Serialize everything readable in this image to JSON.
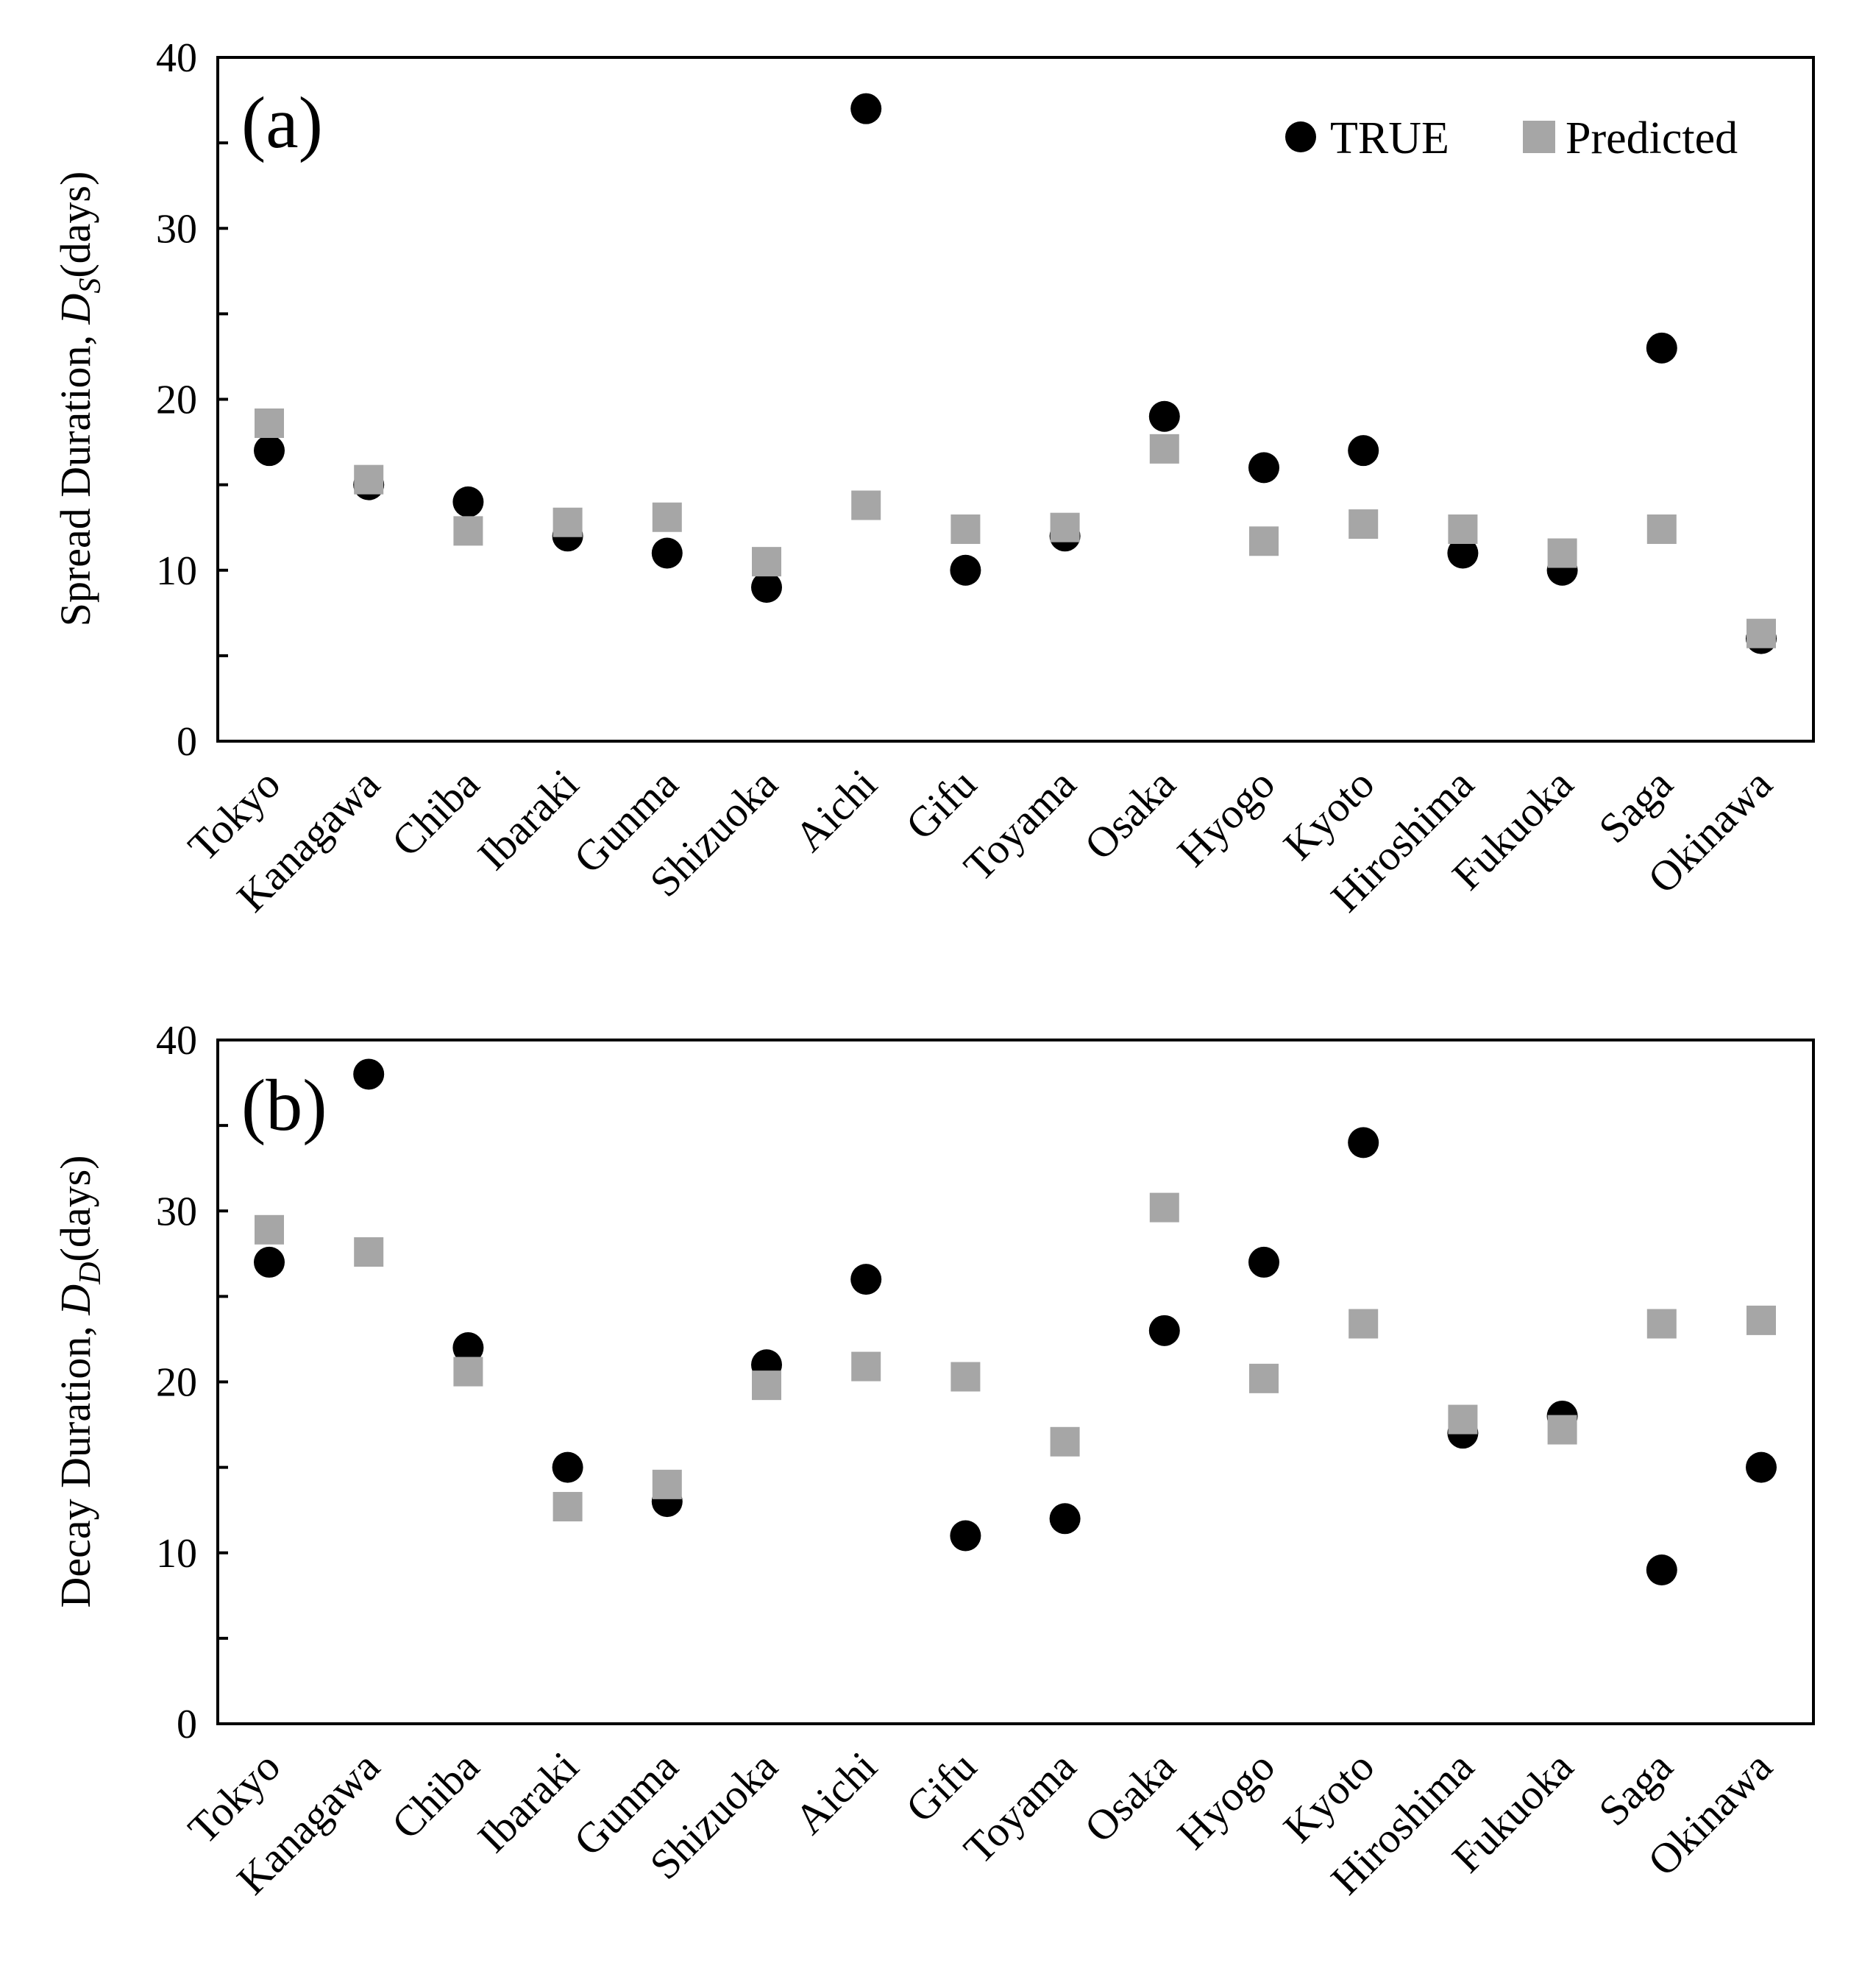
{
  "colors": {
    "true_marker": "#000000",
    "predicted_marker": "#a6a6a6",
    "axes": "#000000"
  },
  "legend": {
    "placement": "top-right",
    "true_label": "TRUE",
    "predicted_label": "Predicted"
  },
  "chart_data": [
    {
      "type": "scatter",
      "panel_label": "(a)",
      "ylabel": {
        "main": "Spread Duration, ",
        "symbol": "D",
        "subscript": "S",
        "unit": "(days)"
      },
      "ylim": [
        0,
        40
      ],
      "yticks": [
        0,
        10,
        20,
        30,
        40
      ],
      "categories": [
        "Tokyo",
        "Kanagawa",
        "Chiba",
        "Ibaraki",
        "Gunma",
        "Shizuoka",
        "Aichi",
        "Gifu",
        "Toyama",
        "Osaka",
        "Hyogo",
        "Kyoto",
        "Hiroshima",
        "Fukuoka",
        "Saga",
        "Okinawa"
      ],
      "series": [
        {
          "name": "TRUE",
          "marker": "circle",
          "values": [
            17,
            15,
            14,
            12,
            11,
            9,
            37,
            10,
            12,
            19,
            16,
            17,
            11,
            10,
            23,
            6
          ]
        },
        {
          "name": "Predicted",
          "marker": "square",
          "values": [
            18.6,
            15.3,
            12.3,
            12.8,
            13.1,
            10.5,
            13.8,
            12.4,
            12.5,
            17.1,
            11.7,
            12.7,
            12.4,
            11.0,
            12.4,
            6.3
          ]
        }
      ],
      "grid": false,
      "legend": "top-right"
    },
    {
      "type": "scatter",
      "panel_label": "(b)",
      "ylabel": {
        "main": "Decay Duration, ",
        "symbol": "D",
        "subscript": "D",
        "unit": "(days)"
      },
      "ylim": [
        0,
        40
      ],
      "yticks": [
        0,
        10,
        20,
        30,
        40
      ],
      "categories": [
        "Tokyo",
        "Kanagawa",
        "Chiba",
        "Ibaraki",
        "Gunma",
        "Shizuoka",
        "Aichi",
        "Gifu",
        "Toyama",
        "Osaka",
        "Hyogo",
        "Kyoto",
        "Hiroshima",
        "Fukuoka",
        "Saga",
        "Okinawa"
      ],
      "series": [
        {
          "name": "TRUE",
          "marker": "circle",
          "values": [
            27,
            38,
            22,
            15,
            13,
            21,
            26,
            11,
            12,
            23,
            27,
            34,
            17,
            18,
            9,
            15
          ]
        },
        {
          "name": "Predicted",
          "marker": "square",
          "values": [
            28.9,
            27.6,
            20.6,
            12.7,
            14.0,
            19.8,
            20.9,
            20.3,
            16.5,
            30.2,
            20.2,
            23.4,
            17.8,
            17.2,
            23.4,
            23.6
          ]
        }
      ],
      "grid": false
    }
  ]
}
